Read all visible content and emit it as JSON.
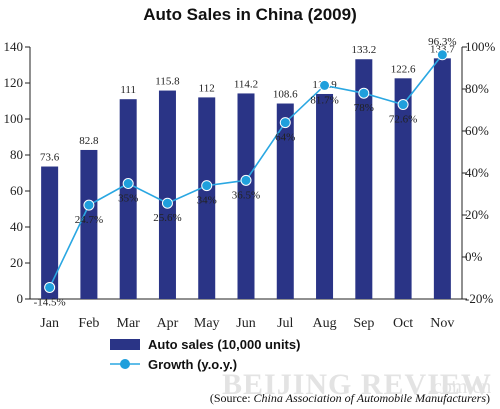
{
  "chart_data": {
    "type": "bar",
    "title": "Auto Sales in China (2009)",
    "categories": [
      "Jan",
      "Feb",
      "Mar",
      "Apr",
      "May",
      "Jun",
      "Jul",
      "Aug",
      "Sep",
      "Oct",
      "Nov"
    ],
    "series": [
      {
        "name": "Auto sales (10,000 units)",
        "type": "bar",
        "axis": "left",
        "values": [
          73.6,
          82.8,
          111,
          115.8,
          112,
          114.2,
          108.6,
          113.9,
          133.2,
          122.6,
          133.7
        ],
        "labels": [
          "73.6",
          "82.8",
          "111",
          "115.8",
          "112",
          "114.2",
          "108.6",
          "113.9",
          "133.2",
          "122.6",
          "133.7"
        ]
      },
      {
        "name": "Growth (y.o.y.)",
        "type": "line",
        "axis": "right",
        "values": [
          -14.5,
          24.7,
          35,
          25.6,
          34,
          36.5,
          64,
          81.7,
          78,
          72.6,
          96.3
        ],
        "labels": [
          "-14.5%",
          "24.7%",
          "35%",
          "25.6%",
          "34%",
          "36.5%",
          "64%",
          "81.7%",
          "78%",
          "72.6%",
          "96.3%"
        ]
      }
    ],
    "ylim_left": [
      0,
      140
    ],
    "yticks_left": [
      "0",
      "20",
      "40",
      "60",
      "80",
      "100",
      "120",
      "140"
    ],
    "ylim_right": [
      -20,
      100
    ],
    "yticks_right": [
      "-20%",
      "0%",
      "20%",
      "40%",
      "60%",
      "80%",
      "100%"
    ],
    "grid": false,
    "legend_position": "bottom-center",
    "colors": {
      "bar": "#2a3486",
      "line": "#2aa7e2",
      "marker": "#1f9fdc"
    }
  },
  "watermark": {
    "main": "BEIJING REVIEW",
    "suffix": ".com.cn"
  },
  "source": {
    "prefix": "(Source: ",
    "name": "China Association of Automobile Manufacturers",
    "suffix": ")"
  }
}
